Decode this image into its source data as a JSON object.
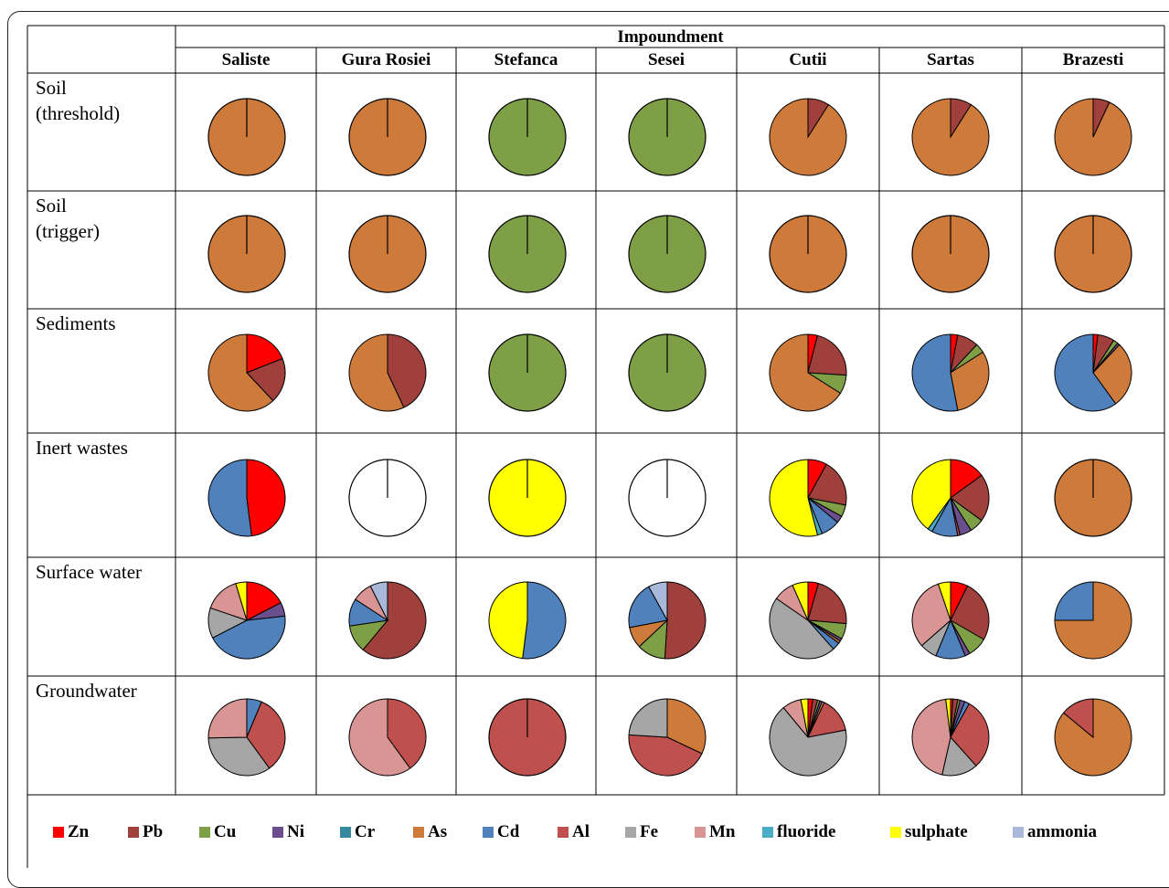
{
  "header": {
    "group_title": "Impoundment"
  },
  "columns": [
    "Saliste",
    "Gura Rosiei",
    "Stefanca",
    "Sesei",
    "Cutii",
    "Sartas",
    "Brazesti"
  ],
  "rows": [
    "Soil\n(threshold)",
    "Soil\n(trigger)",
    "Sediments",
    "Inert wastes",
    "Surface water",
    "Groundwater"
  ],
  "legend": [
    {
      "key": "Zn",
      "label": "Zn",
      "color": "#ff0000"
    },
    {
      "key": "Pb",
      "label": "Pb",
      "color": "#a0403d"
    },
    {
      "key": "Cu",
      "label": "Cu",
      "color": "#7f9f47"
    },
    {
      "key": "Ni",
      "label": "Ni",
      "color": "#6a4f8c"
    },
    {
      "key": "Cr",
      "label": "Cr",
      "color": "#368aa0"
    },
    {
      "key": "As",
      "label": "As",
      "color": "#cd7a3a"
    },
    {
      "key": "Cd",
      "label": "Cd",
      "color": "#4f81bd"
    },
    {
      "key": "Al",
      "label": "Al",
      "color": "#c0504d"
    },
    {
      "key": "Fe",
      "label": "Fe",
      "color": "#a6a6a6"
    },
    {
      "key": "Mn",
      "label": "Mn",
      "color": "#d99594"
    },
    {
      "key": "fluoride",
      "label": "fluoride",
      "color": "#4bacc6"
    },
    {
      "key": "sulphate",
      "label": "sulphate",
      "color": "#ffff00"
    },
    {
      "key": "ammonia",
      "label": "ammonia",
      "color": "#a9b8d9"
    }
  ],
  "chart_data": {
    "type": "pie",
    "title": "Impoundment",
    "rows": [
      "Soil (threshold)",
      "Soil (trigger)",
      "Sediments",
      "Inert wastes",
      "Surface water",
      "Groundwater"
    ],
    "columns": [
      "Saliste",
      "Gura Rosiei",
      "Stefanca",
      "Sesei",
      "Cutii",
      "Sartas",
      "Brazesti"
    ],
    "pies": [
      [
        [
          {
            "k": "As",
            "v": 100
          }
        ],
        [
          {
            "k": "As",
            "v": 100
          }
        ],
        [
          {
            "k": "Cu",
            "v": 100
          }
        ],
        [
          {
            "k": "Cu",
            "v": 100
          }
        ],
        [
          {
            "k": "Pb",
            "v": 9
          },
          {
            "k": "As",
            "v": 91
          }
        ],
        [
          {
            "k": "Pb",
            "v": 9
          },
          {
            "k": "As",
            "v": 91
          }
        ],
        [
          {
            "k": "Pb",
            "v": 7
          },
          {
            "k": "As",
            "v": 93
          }
        ]
      ],
      [
        [
          {
            "k": "As",
            "v": 100
          }
        ],
        [
          {
            "k": "As",
            "v": 100
          }
        ],
        [
          {
            "k": "Cu",
            "v": 100
          }
        ],
        [
          {
            "k": "Cu",
            "v": 100
          }
        ],
        [
          {
            "k": "As",
            "v": 100
          }
        ],
        [
          {
            "k": "As",
            "v": 100
          }
        ],
        [
          {
            "k": "As",
            "v": 100
          }
        ]
      ],
      [
        [
          {
            "k": "Zn",
            "v": 19
          },
          {
            "k": "Pb",
            "v": 19
          },
          {
            "k": "As",
            "v": 62
          }
        ],
        [
          {
            "k": "Pb",
            "v": 43
          },
          {
            "k": "As",
            "v": 57
          }
        ],
        [
          {
            "k": "Cu",
            "v": 100
          }
        ],
        [
          {
            "k": "Cu",
            "v": 100
          }
        ],
        [
          {
            "k": "Zn",
            "v": 4
          },
          {
            "k": "Pb",
            "v": 22
          },
          {
            "k": "Cu",
            "v": 8
          },
          {
            "k": "As",
            "v": 66
          }
        ],
        [
          {
            "k": "Zn",
            "v": 3
          },
          {
            "k": "Pb",
            "v": 9
          },
          {
            "k": "Cu",
            "v": 4
          },
          {
            "k": "As",
            "v": 31
          },
          {
            "k": "Cd",
            "v": 53
          }
        ],
        [
          {
            "k": "Zn",
            "v": 2
          },
          {
            "k": "Pb",
            "v": 7
          },
          {
            "k": "Cu",
            "v": 2
          },
          {
            "k": "Ni",
            "v": 1
          },
          {
            "k": "As",
            "v": 28
          },
          {
            "k": "Cd",
            "v": 60
          }
        ]
      ],
      [
        [
          {
            "k": "Zn",
            "v": 48
          },
          {
            "k": "Cd",
            "v": 52
          }
        ],
        [],
        [
          {
            "k": "sulphate",
            "v": 100
          }
        ],
        [],
        [
          {
            "k": "Zn",
            "v": 8
          },
          {
            "k": "Pb",
            "v": 20
          },
          {
            "k": "Cu",
            "v": 5
          },
          {
            "k": "Ni",
            "v": 3
          },
          {
            "k": "Cd",
            "v": 8
          },
          {
            "k": "fluoride",
            "v": 2
          },
          {
            "k": "sulphate",
            "v": 54
          }
        ],
        [
          {
            "k": "Zn",
            "v": 15
          },
          {
            "k": "Pb",
            "v": 20
          },
          {
            "k": "Cu",
            "v": 6
          },
          {
            "k": "Ni",
            "v": 5
          },
          {
            "k": "Al",
            "v": 1
          },
          {
            "k": "Cd",
            "v": 11
          },
          {
            "k": "fluoride",
            "v": 2
          },
          {
            "k": "sulphate",
            "v": 40
          }
        ],
        [
          {
            "k": "As",
            "v": 100
          }
        ]
      ],
      [
        [
          {
            "k": "Zn",
            "v": 15
          },
          {
            "k": "Ni",
            "v": 5
          },
          {
            "k": "Cd",
            "v": 38
          },
          {
            "k": "Fe",
            "v": 11
          },
          {
            "k": "Mn",
            "v": 13
          },
          {
            "k": "sulphate",
            "v": 4
          }
        ],
        [
          {
            "k": "Pb",
            "v": 58
          },
          {
            "k": "Cu",
            "v": 11
          },
          {
            "k": "Cd",
            "v": 11
          },
          {
            "k": "Mn",
            "v": 8
          },
          {
            "k": "ammonia",
            "v": 7
          }
        ],
        [
          {
            "k": "Cd",
            "v": 52
          },
          {
            "k": "sulphate",
            "v": 48
          }
        ],
        [
          {
            "k": "Pb",
            "v": 51
          },
          {
            "k": "Cu",
            "v": 12
          },
          {
            "k": "As",
            "v": 9
          },
          {
            "k": "Cd",
            "v": 20
          },
          {
            "k": "ammonia",
            "v": 8
          }
        ],
        [
          {
            "k": "Zn",
            "v": 4
          },
          {
            "k": "Pb",
            "v": 20
          },
          {
            "k": "Cu",
            "v": 6
          },
          {
            "k": "Ni",
            "v": 1
          },
          {
            "k": "As",
            "v": 1
          },
          {
            "k": "Cd",
            "v": 3
          },
          {
            "k": "Fe",
            "v": 42
          },
          {
            "k": "Mn",
            "v": 8
          },
          {
            "k": "sulphate",
            "v": 6
          }
        ],
        [
          {
            "k": "Zn",
            "v": 7
          },
          {
            "k": "Pb",
            "v": 25
          },
          {
            "k": "Cu",
            "v": 8
          },
          {
            "k": "Ni",
            "v": 2
          },
          {
            "k": "Cd",
            "v": 12
          },
          {
            "k": "Fe",
            "v": 7
          },
          {
            "k": "Mn",
            "v": 30
          },
          {
            "k": "sulphate",
            "v": 5
          }
        ],
        [
          {
            "k": "As",
            "v": 75
          },
          {
            "k": "Cd",
            "v": 25
          }
        ]
      ],
      [
        [
          {
            "k": "Cd",
            "v": 6
          },
          {
            "k": "Al",
            "v": 32
          },
          {
            "k": "Fe",
            "v": 33
          },
          {
            "k": "Mn",
            "v": 24
          }
        ],
        [
          {
            "k": "Al",
            "v": 40
          },
          {
            "k": "Mn",
            "v": 60
          }
        ],
        [
          {
            "k": "Al",
            "v": 100
          }
        ],
        [
          {
            "k": "As",
            "v": 32
          },
          {
            "k": "Al",
            "v": 44
          },
          {
            "k": "Fe",
            "v": 24
          }
        ],
        [
          {
            "k": "Zn",
            "v": 2
          },
          {
            "k": "Pb",
            "v": 2
          },
          {
            "k": "Cu",
            "v": 1
          },
          {
            "k": "Ni",
            "v": 1
          },
          {
            "k": "As",
            "v": 1
          },
          {
            "k": "Al",
            "v": 15
          },
          {
            "k": "Fe",
            "v": 67
          },
          {
            "k": "Mn",
            "v": 8
          },
          {
            "k": "sulphate",
            "v": 3
          }
        ],
        [
          {
            "k": "Zn",
            "v": 1
          },
          {
            "k": "Pb",
            "v": 2
          },
          {
            "k": "Cu",
            "v": 1
          },
          {
            "k": "Ni",
            "v": 2
          },
          {
            "k": "Cd",
            "v": 2
          },
          {
            "k": "Al",
            "v": 30
          },
          {
            "k": "Fe",
            "v": 15
          },
          {
            "k": "Mn",
            "v": 44
          },
          {
            "k": "sulphate",
            "v": 2
          }
        ],
        [
          {
            "k": "As",
            "v": 86
          },
          {
            "k": "Al",
            "v": 14
          }
        ]
      ]
    ]
  }
}
